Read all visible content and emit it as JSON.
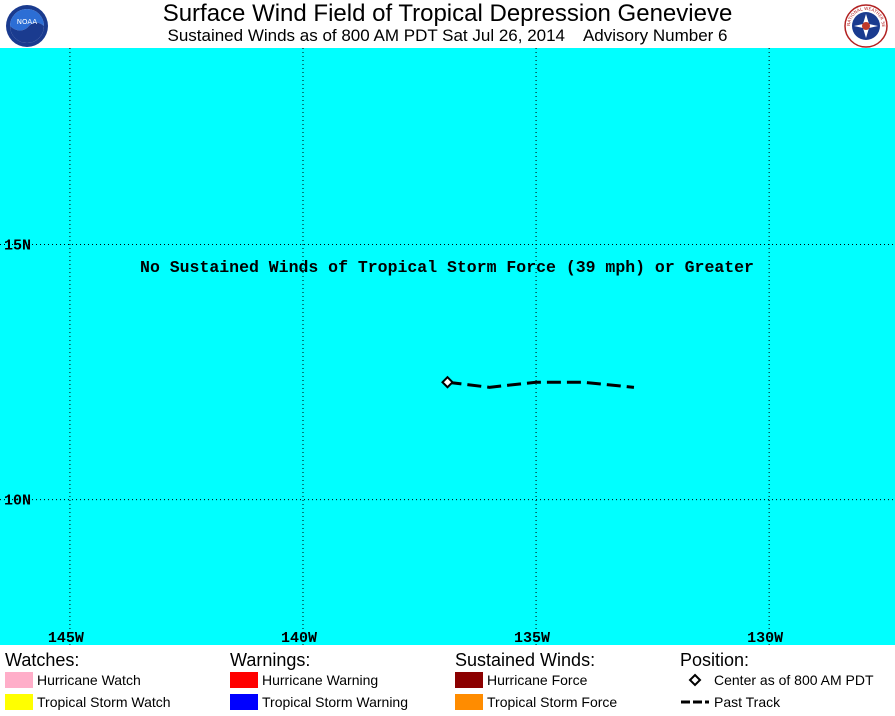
{
  "header": {
    "title": "Surface Wind Field of Tropical Depression Genevieve",
    "subtitle": "Sustained Winds as of 800 AM PDT Sat Jul 26, 2014    Advisory Number 6",
    "left_logo": "NOAA",
    "right_logo": "NATIONAL WEATHER SERVICE"
  },
  "map": {
    "ocean_color": "#00ffff",
    "grid": "dotted",
    "lon_labels": [
      "145W",
      "140W",
      "135W",
      "130W"
    ],
    "lat_labels": [
      "15N",
      "10N"
    ],
    "lon_range": [
      -146.5,
      -127.3
    ],
    "lat_range": [
      7.15,
      18.85
    ],
    "grid_lons": [
      -145,
      -140,
      -135,
      -130
    ],
    "grid_lats": [
      15,
      10
    ],
    "annotation": "No Sustained Winds of Tropical Storm Force (39 mph) or Greater",
    "center": {
      "lon": -136.9,
      "lat": 12.3
    },
    "past_track": [
      {
        "lon": -136.9,
        "lat": 12.3
      },
      {
        "lon": -136.0,
        "lat": 12.2
      },
      {
        "lon": -135.0,
        "lat": 12.3
      },
      {
        "lon": -134.0,
        "lat": 12.3
      },
      {
        "lon": -132.9,
        "lat": 12.2
      }
    ]
  },
  "legend": {
    "watches": {
      "heading": "Watches:",
      "items": [
        {
          "label": "Hurricane Watch",
          "color": "#ffaec9"
        },
        {
          "label": "Tropical Storm Watch",
          "color": "#ffff00"
        }
      ]
    },
    "warnings": {
      "heading": "Warnings:",
      "items": [
        {
          "label": "Hurricane Warning",
          "color": "#ff0000"
        },
        {
          "label": "Tropical Storm Warning",
          "color": "#0000ff"
        }
      ]
    },
    "winds": {
      "heading": "Sustained Winds:",
      "items": [
        {
          "label": "Hurricane Force",
          "color": "#8b0000"
        },
        {
          "label": "Tropical Storm Force",
          "color": "#ff8c00"
        }
      ]
    },
    "position": {
      "heading": "Position:",
      "items": [
        {
          "label": "Center as of 800 AM PDT",
          "icon": "diamond-icon"
        },
        {
          "label": "Past Track",
          "icon": "dashed-line-icon"
        }
      ]
    }
  }
}
